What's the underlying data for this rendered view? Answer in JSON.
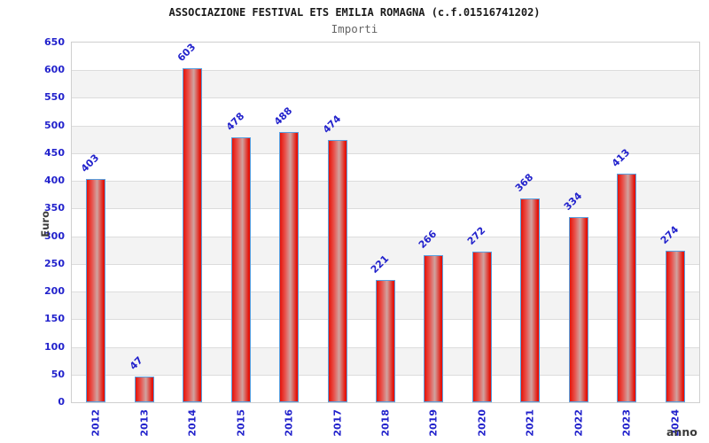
{
  "chart_data": {
    "type": "bar",
    "title": "ASSOCIAZIONE FESTIVAL ETS EMILIA ROMAGNA (c.f.01516741202)",
    "subtitle": "Importi",
    "xlabel": "anno",
    "ylabel": "Euro",
    "categories": [
      "2012",
      "2013",
      "2014",
      "2015",
      "2016",
      "2017",
      "2018",
      "2019",
      "2020",
      "2021",
      "2022",
      "2023",
      "2024"
    ],
    "values": [
      403,
      47,
      603,
      478,
      488,
      474,
      221,
      266,
      272,
      368,
      334,
      413,
      274
    ],
    "ylim": [
      0,
      650
    ],
    "ytick_step": 50,
    "yticks": [
      0,
      50,
      100,
      150,
      200,
      250,
      300,
      350,
      400,
      450,
      500,
      550,
      600,
      650
    ],
    "grid": "horizontal-bands",
    "legend": "none",
    "colors": {
      "bar_fill_edge": "#e51208",
      "bar_fill_center": "#d0a3a0",
      "bar_border": "#58a0e0",
      "tick_text": "#2222cc",
      "value_label_text": "#2222cc",
      "axis_label_text": "#3a3a3a",
      "title_text": "#1a1a1a",
      "subtitle_text": "#666666",
      "band_light": "#ffffff",
      "band_gray": "#f3f3f3",
      "gridline": "#dcdcdc",
      "plot_border": "#cfcfcf"
    }
  }
}
